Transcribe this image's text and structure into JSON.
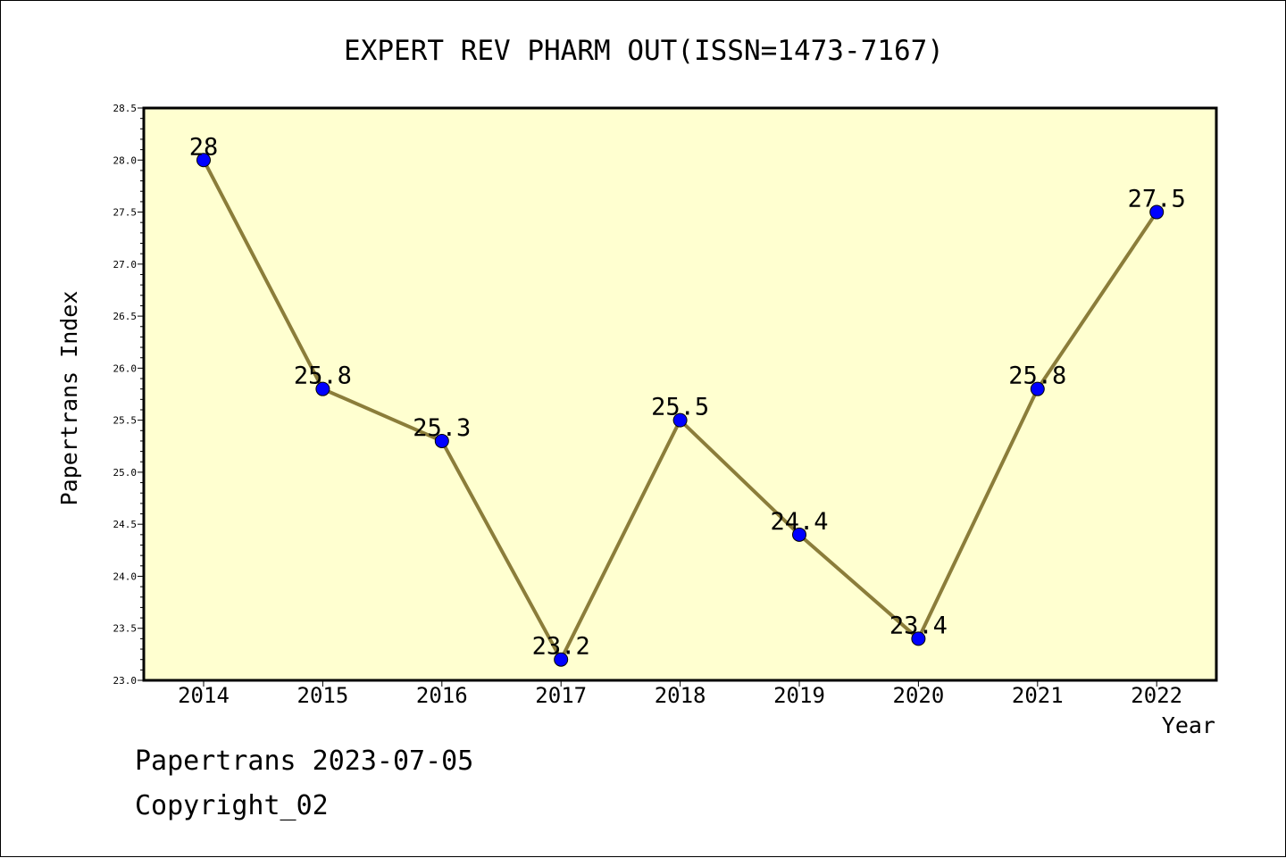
{
  "chart_data": {
    "type": "line",
    "title": "EXPERT REV PHARM OUT(ISSN=1473-7167)",
    "xlabel": "Year",
    "ylabel": "Papertrans Index",
    "categories": [
      "2014",
      "2015",
      "2016",
      "2017",
      "2018",
      "2019",
      "2020",
      "2021",
      "2022"
    ],
    "values": [
      28,
      25.8,
      25.3,
      23.2,
      25.5,
      24.4,
      23.4,
      25.8,
      27.5
    ],
    "data_labels": [
      "28",
      "25.8",
      "25.3",
      "23.2",
      "25.5",
      "24.4",
      "23.4",
      "25.8",
      "27.5"
    ],
    "ylim": [
      23.0,
      28.5
    ],
    "yticks": [
      "23.0",
      "23.5",
      "24.0",
      "24.5",
      "25.0",
      "25.5",
      "26.0",
      "26.5",
      "27.0",
      "27.5",
      "28.0",
      "28.5"
    ],
    "grid": false,
    "colors": {
      "plot_background": "#ffffd0",
      "line": "#8b7d3a",
      "marker": "#0000ff"
    }
  },
  "footer": {
    "line1": "Papertrans 2023-07-05",
    "line2": "Copyright_02"
  }
}
